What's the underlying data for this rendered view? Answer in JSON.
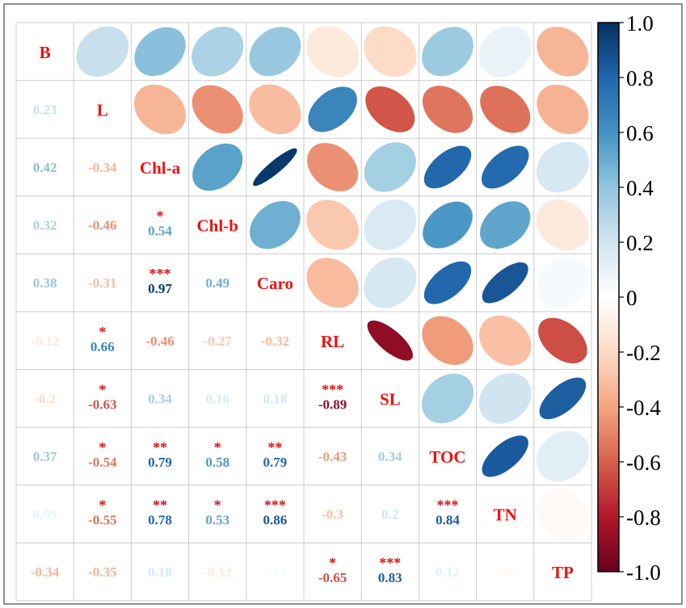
{
  "chart_data": {
    "type": "heatmap",
    "subtype": "correlation-matrix-mixed",
    "upper_display": "ellipse",
    "lower_display": "number",
    "diagonal_display": "variable-name",
    "variables": [
      "B",
      "L",
      "Chl-a",
      "Chl-b",
      "Caro",
      "RL",
      "SL",
      "TOC",
      "TN",
      "TP"
    ],
    "matrix": [
      [
        1,
        0.23,
        0.42,
        0.32,
        0.38,
        -0.12,
        -0.2,
        0.37,
        0.09,
        -0.34
      ],
      [
        0.23,
        1,
        -0.34,
        -0.46,
        -0.31,
        0.66,
        -0.63,
        -0.54,
        -0.55,
        -0.35
      ],
      [
        0.42,
        -0.34,
        1,
        0.54,
        0.97,
        -0.46,
        0.34,
        0.79,
        0.78,
        0.18
      ],
      [
        0.32,
        -0.46,
        0.54,
        1,
        0.49,
        -0.27,
        0.16,
        0.58,
        0.53,
        -0.12
      ],
      [
        0.38,
        -0.31,
        0.97,
        0.49,
        1,
        -0.32,
        0.18,
        0.79,
        0.86,
        0.04
      ],
      [
        -0.12,
        0.66,
        -0.46,
        -0.27,
        -0.32,
        1,
        -0.89,
        -0.43,
        -0.3,
        -0.65
      ],
      [
        -0.2,
        -0.63,
        0.34,
        0.16,
        0.18,
        -0.89,
        1,
        0.34,
        0.2,
        0.83
      ],
      [
        0.37,
        -0.54,
        0.79,
        0.58,
        0.79,
        -0.43,
        0.34,
        1,
        0.84,
        0.12
      ],
      [
        0.09,
        -0.55,
        0.78,
        0.53,
        0.86,
        -0.3,
        0.2,
        0.84,
        1,
        -0.03
      ],
      [
        -0.34,
        -0.35,
        0.18,
        -0.12,
        0.04,
        -0.65,
        0.83,
        0.12,
        -0.03,
        1
      ]
    ],
    "significance": [
      {
        "row": 3,
        "col": 2,
        "stars": "*"
      },
      {
        "row": 4,
        "col": 2,
        "stars": "***"
      },
      {
        "row": 5,
        "col": 1,
        "stars": "*"
      },
      {
        "row": 6,
        "col": 1,
        "stars": "*"
      },
      {
        "row": 6,
        "col": 5,
        "stars": "***"
      },
      {
        "row": 7,
        "col": 1,
        "stars": "*"
      },
      {
        "row": 7,
        "col": 2,
        "stars": "**"
      },
      {
        "row": 7,
        "col": 3,
        "stars": "*"
      },
      {
        "row": 7,
        "col": 4,
        "stars": "**"
      },
      {
        "row": 8,
        "col": 1,
        "stars": "*"
      },
      {
        "row": 8,
        "col": 2,
        "stars": "**"
      },
      {
        "row": 8,
        "col": 3,
        "stars": "*"
      },
      {
        "row": 8,
        "col": 4,
        "stars": "***"
      },
      {
        "row": 8,
        "col": 7,
        "stars": "***"
      },
      {
        "row": 9,
        "col": 5,
        "stars": "*"
      },
      {
        "row": 9,
        "col": 6,
        "stars": "***"
      }
    ],
    "label_color": "#ee1111",
    "colorbar": {
      "range": [
        -1.0,
        1.0
      ],
      "tick_values": [
        1.0,
        0.8,
        0.6,
        0.4,
        0.2,
        0,
        -0.2,
        -0.4,
        -0.6,
        -0.8,
        -1.0
      ],
      "tick_labels": [
        "1.0",
        "0.8",
        "0.6",
        "0.4",
        "0.2",
        "0",
        "-0.2",
        "-0.4",
        "-0.6",
        "-0.8",
        "-1.0"
      ],
      "color_stops": [
        "#67001f",
        "#b2182b",
        "#d6604d",
        "#f4a582",
        "#fddbc7",
        "#ffffff",
        "#d1e5f0",
        "#92c5de",
        "#4393c3",
        "#2166ac",
        "#053061"
      ]
    }
  }
}
